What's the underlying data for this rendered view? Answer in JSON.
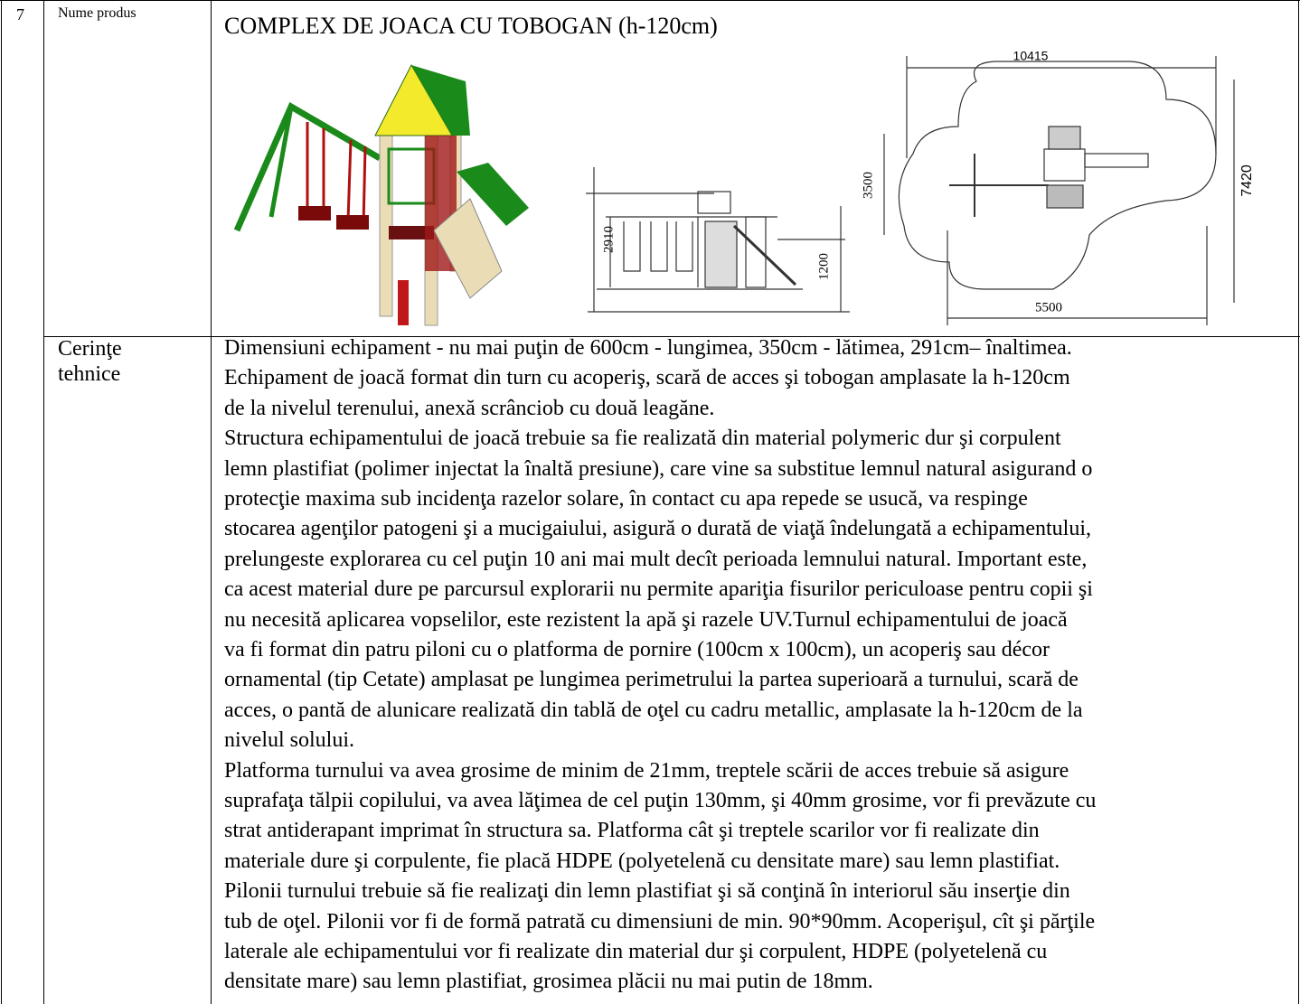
{
  "row_number": "7",
  "product": {
    "label": "Nume produs",
    "name": "COMPLEX DE JOACA CU TOBOGAN (h-120cm)",
    "side_view_dims": [
      "2910",
      "1200"
    ],
    "plan_dims": [
      "10415",
      "7420",
      "3500",
      "5500"
    ]
  },
  "requirements": {
    "label": [
      "Cerinţe",
      "tehnice"
    ],
    "lines": [
      "Dimensiuni echipament - nu mai puţin de 600cm - lungimea, 350cm - lătimea, 291cm– înaltimea.",
      "Echipament de joacă format din turn cu acoperiş, scară de acces şi tobogan amplasate la h-120cm",
      "de la nivelul terenului, anexă scrânciob cu două leagăne.",
      "Structura echipamentului de joacă trebuie sa fie realizată din material polymeric dur şi corpulent",
      "lemn plastifiat (polimer injectat la înaltă presiune), care vine sa substitue lemnul natural asigurand o",
      "protecţie maxima sub incidenţa razelor solare, în contact cu apa repede se usucă, va respinge",
      "stocarea agenţilor patogeni şi a mucigaiului, asigură o durată de viaţă îndelungată a echipamentului,",
      "prelungeste explorarea cu cel puţin 10 ani mai mult decît perioada lemnului natural. Important este,",
      "ca acest material dure pe parcursul explorarii nu permite apariţia fisurilor periculoase pentru copii şi",
      "nu necesită aplicarea vopselilor, este rezistent la apă şi razele UV.Turnul echipamentului de joacă",
      "va fi format din patru piloni cu o platforma de pornire (100cm x 100cm), un acoperiş sau décor",
      "ornamental (tip Cetate) amplasat pe lungimea perimetrului la partea superioară a turnului, scară de",
      "acces, o pantă de alunicare realizată din tablă de oţel cu cadru metallic, amplasate la h-120cm de la",
      "nivelul solului.",
      "Platforma turnului va avea grosime de minim de 21mm, treptele scării de acces trebuie să asigure",
      "suprafaţa tălpii copilului, va avea lăţimea de cel puţin 130mm, şi 40mm grosime, vor fi prevăzute cu",
      "strat antiderapant imprimat în structura sa. Platforma cât şi treptele scarilor vor fi realizate din",
      "materiale dure şi corpulente, fie placă HDPE (polyetelenă cu densitate mare) sau lemn plastifiat.",
      "Pilonii turnului trebuie să fie realizaţi din lemn plastifiat şi să conţină în interiorul său inserţie din",
      "tub de oţel. Pilonii vor fi de formă patrată cu dimensiuni de min. 90*90mm. Acoperişul, cît şi părţile",
      "laterale ale echipamentului vor fi realizate din material dur şi corpulent, HDPE (polyetelenă cu",
      "densitate mare) sau lemn plastifiat, grosimea plăcii nu mai putin de 18mm."
    ]
  }
}
